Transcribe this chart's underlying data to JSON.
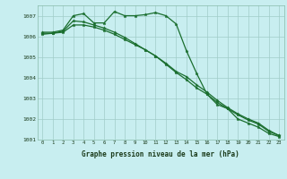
{
  "bg_color": "#c8eef0",
  "grid_color": "#a0ccc8",
  "line_color": "#1a6e2e",
  "x": [
    0,
    1,
    2,
    3,
    4,
    5,
    6,
    7,
    8,
    9,
    10,
    11,
    12,
    13,
    14,
    15,
    16,
    17,
    18,
    19,
    20,
    21,
    22,
    23
  ],
  "line1": [
    1006.2,
    1006.2,
    1006.3,
    1007.0,
    1007.1,
    1006.65,
    1006.65,
    1007.2,
    1007.0,
    1007.0,
    1007.05,
    1007.15,
    1007.0,
    1006.6,
    1005.3,
    1004.2,
    1003.2,
    1002.7,
    1002.5,
    1002.0,
    1001.8,
    1001.6,
    1001.3,
    1001.15
  ],
  "line2": [
    1006.15,
    1006.15,
    1006.2,
    1006.55,
    1006.55,
    1006.45,
    1006.3,
    1006.1,
    1005.85,
    1005.6,
    1005.35,
    1005.05,
    1004.65,
    1004.25,
    1003.9,
    1003.5,
    1003.2,
    1002.8,
    1002.5,
    1002.2,
    1001.95,
    1001.75,
    1001.4,
    1001.2
  ],
  "line3": [
    1006.1,
    1006.15,
    1006.25,
    1006.75,
    1006.7,
    1006.55,
    1006.4,
    1006.2,
    1005.95,
    1005.65,
    1005.35,
    1005.05,
    1004.7,
    1004.3,
    1004.05,
    1003.65,
    1003.3,
    1002.9,
    1002.55,
    1002.25,
    1002.0,
    1001.8,
    1001.45,
    1001.2
  ],
  "ylim": [
    1001.0,
    1007.5
  ],
  "yticks": [
    1001,
    1002,
    1003,
    1004,
    1005,
    1006,
    1007
  ],
  "xlabel": "Graphe pression niveau de la mer (hPa)",
  "figsize": [
    3.2,
    2.0
  ],
  "dpi": 100
}
